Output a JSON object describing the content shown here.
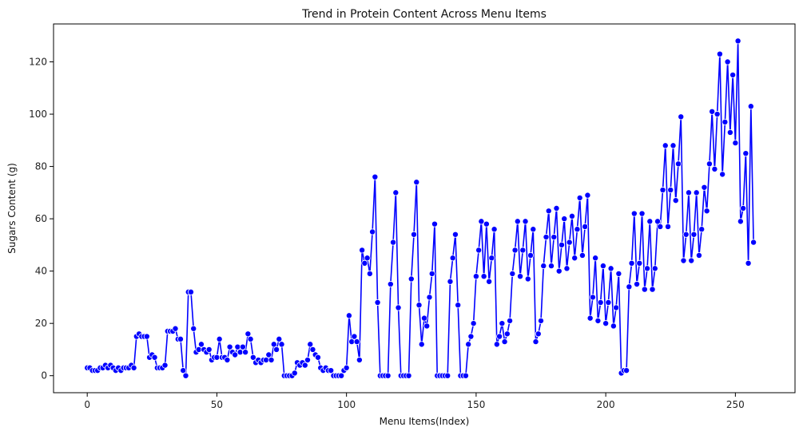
{
  "chart_data": {
    "type": "line",
    "title": "Trend in Protein Content Across Menu Items",
    "xlabel": "Menu Items(Index)",
    "ylabel": "Sugars Content (g)",
    "xlim": [
      -13,
      273
    ],
    "ylim": [
      -6.5,
      134.5
    ],
    "xticks": [
      0,
      50,
      100,
      150,
      200,
      250
    ],
    "yticks": [
      0,
      20,
      40,
      60,
      80,
      100,
      120
    ],
    "grid": false,
    "legend": "none",
    "line_color": "#0000ff",
    "marker_edge_color": "#ffffff",
    "series": [
      {
        "values": [
          3,
          3,
          2,
          2,
          2,
          3,
          3,
          4,
          3,
          4,
          3,
          2,
          3,
          2,
          3,
          3,
          3,
          4,
          3,
          15,
          16,
          15,
          15,
          15,
          7,
          8,
          7,
          3,
          3,
          3,
          4,
          17,
          17,
          17,
          18,
          14,
          14,
          2,
          0,
          32,
          32,
          18,
          9,
          10,
          12,
          10,
          9,
          10,
          6,
          7,
          7,
          14,
          7,
          7,
          6,
          11,
          9,
          8,
          11,
          9,
          11,
          9,
          16,
          14,
          7,
          5,
          6,
          5,
          6,
          6,
          8,
          6,
          12,
          10,
          14,
          12,
          0,
          0,
          0,
          0,
          1,
          5,
          4,
          5,
          4,
          6,
          12,
          10,
          8,
          7,
          3,
          2,
          3,
          2,
          2,
          0,
          0,
          0,
          0,
          2,
          3,
          23,
          13,
          15,
          13,
          6,
          48,
          43,
          45,
          39,
          55,
          76,
          28,
          0,
          0,
          0,
          0,
          35,
          51,
          70,
          26,
          0,
          0,
          0,
          0,
          37,
          54,
          74,
          27,
          12,
          22,
          19,
          30,
          39,
          58,
          0,
          0,
          0,
          0,
          0,
          36,
          45,
          54,
          27,
          0,
          0,
          0,
          12,
          15,
          20,
          38,
          48,
          59,
          38,
          58,
          36,
          45,
          56,
          12,
          15,
          20,
          13,
          16,
          21,
          39,
          48,
          59,
          38,
          48,
          59,
          37,
          46,
          56,
          13,
          16,
          21,
          42,
          53,
          63,
          42,
          53,
          64,
          40,
          50,
          60,
          41,
          51,
          61,
          45,
          56,
          68,
          46,
          57,
          69,
          22,
          30,
          45,
          21,
          28,
          42,
          20,
          28,
          41,
          19,
          26,
          39,
          1,
          2,
          2,
          34,
          43,
          62,
          35,
          43,
          62,
          33,
          41,
          59,
          33,
          41,
          59,
          57,
          71,
          88,
          57,
          71,
          88,
          67,
          81,
          99,
          44,
          54,
          70,
          44,
          54,
          70,
          46,
          56,
          72,
          63,
          81,
          101,
          79,
          100,
          123,
          77,
          97,
          120,
          93,
          115,
          89,
          128,
          59,
          64,
          85,
          43,
          103,
          51
        ]
      }
    ]
  }
}
